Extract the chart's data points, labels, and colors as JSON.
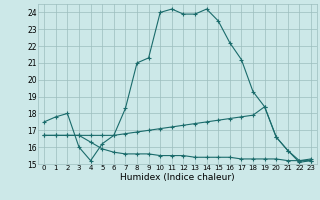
{
  "xlabel": "Humidex (Indice chaleur)",
  "bg_color": "#cce8e8",
  "grid_color": "#9cbebe",
  "line_color": "#1a6b6b",
  "xlim": [
    -0.5,
    23.5
  ],
  "ylim": [
    15,
    24.5
  ],
  "yticks": [
    15,
    16,
    17,
    18,
    19,
    20,
    21,
    22,
    23,
    24
  ],
  "xticks": [
    0,
    1,
    2,
    3,
    4,
    5,
    6,
    7,
    8,
    9,
    10,
    11,
    12,
    13,
    14,
    15,
    16,
    17,
    18,
    19,
    20,
    21,
    22,
    23
  ],
  "line1_x": [
    0,
    1,
    2,
    3,
    4,
    5,
    6,
    7,
    8,
    9,
    10,
    11,
    12,
    13,
    14,
    15,
    16,
    17,
    18,
    19,
    20,
    21,
    22,
    23
  ],
  "line1_y": [
    17.5,
    17.8,
    18.0,
    16.0,
    15.2,
    16.2,
    16.7,
    18.3,
    21.0,
    21.3,
    24.0,
    24.2,
    23.9,
    23.9,
    24.2,
    23.5,
    22.2,
    21.2,
    19.3,
    18.4,
    16.6,
    15.8,
    15.2,
    15.3
  ],
  "line2_x": [
    0,
    1,
    2,
    3,
    4,
    5,
    6,
    7,
    8,
    9,
    10,
    11,
    12,
    13,
    14,
    15,
    16,
    17,
    18,
    19,
    20,
    21,
    22,
    23
  ],
  "line2_y": [
    16.7,
    16.7,
    16.7,
    16.7,
    16.7,
    16.7,
    16.7,
    16.8,
    16.9,
    17.0,
    17.1,
    17.2,
    17.3,
    17.4,
    17.5,
    17.6,
    17.7,
    17.8,
    17.9,
    18.4,
    16.6,
    15.8,
    15.1,
    15.2
  ],
  "line3_x": [
    0,
    1,
    2,
    3,
    4,
    5,
    6,
    7,
    8,
    9,
    10,
    11,
    12,
    13,
    14,
    15,
    16,
    17,
    18,
    19,
    20,
    21,
    22,
    23
  ],
  "line3_y": [
    16.7,
    16.7,
    16.7,
    16.7,
    16.3,
    15.9,
    15.7,
    15.6,
    15.6,
    15.6,
    15.5,
    15.5,
    15.5,
    15.4,
    15.4,
    15.4,
    15.4,
    15.3,
    15.3,
    15.3,
    15.3,
    15.2,
    15.2,
    15.2
  ]
}
